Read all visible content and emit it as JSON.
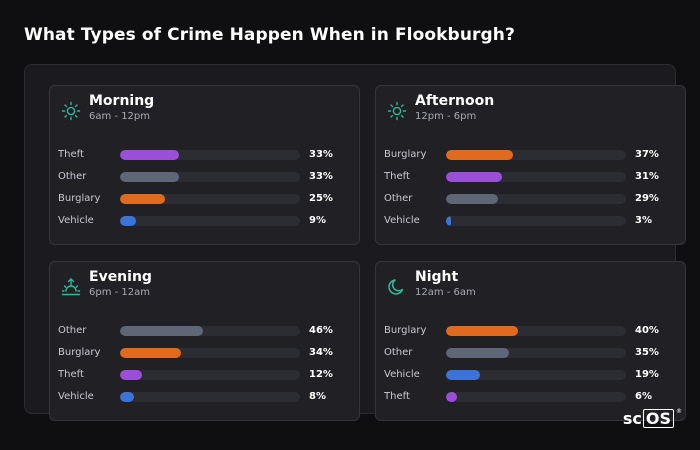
{
  "title": "What Types of Crime Happen When in Flookburgh?",
  "colors": {
    "theft": "#9b4fd9",
    "other": "#5f6675",
    "burglary": "#e06b1f",
    "vehicle": "#3b74d9",
    "icon": "#2fb89a"
  },
  "cards": [
    {
      "name": "Morning",
      "range": "6am - 12pm",
      "icon": "sun-icon",
      "rows": [
        {
          "label": "Theft",
          "pct": "33%",
          "value": 33,
          "color": "#9b4fd9"
        },
        {
          "label": "Other",
          "pct": "33%",
          "value": 33,
          "color": "#5f6675"
        },
        {
          "label": "Burglary",
          "pct": "25%",
          "value": 25,
          "color": "#e06b1f"
        },
        {
          "label": "Vehicle",
          "pct": "9%",
          "value": 9,
          "color": "#3b74d9"
        }
      ]
    },
    {
      "name": "Afternoon",
      "range": "12pm - 6pm",
      "icon": "sun-icon",
      "rows": [
        {
          "label": "Burglary",
          "pct": "37%",
          "value": 37,
          "color": "#e06b1f"
        },
        {
          "label": "Theft",
          "pct": "31%",
          "value": 31,
          "color": "#9b4fd9"
        },
        {
          "label": "Other",
          "pct": "29%",
          "value": 29,
          "color": "#5f6675"
        },
        {
          "label": "Vehicle",
          "pct": "3%",
          "value": 3,
          "color": "#3b74d9"
        }
      ]
    },
    {
      "name": "Evening",
      "range": "6pm - 12am",
      "icon": "sunset-icon",
      "rows": [
        {
          "label": "Other",
          "pct": "46%",
          "value": 46,
          "color": "#5f6675"
        },
        {
          "label": "Burglary",
          "pct": "34%",
          "value": 34,
          "color": "#e06b1f"
        },
        {
          "label": "Theft",
          "pct": "12%",
          "value": 12,
          "color": "#9b4fd9"
        },
        {
          "label": "Vehicle",
          "pct": "8%",
          "value": 8,
          "color": "#3b74d9"
        }
      ]
    },
    {
      "name": "Night",
      "range": "12am - 6am",
      "icon": "moon-icon",
      "rows": [
        {
          "label": "Burglary",
          "pct": "40%",
          "value": 40,
          "color": "#e06b1f"
        },
        {
          "label": "Other",
          "pct": "35%",
          "value": 35,
          "color": "#5f6675"
        },
        {
          "label": "Vehicle",
          "pct": "19%",
          "value": 19,
          "color": "#3b74d9"
        },
        {
          "label": "Theft",
          "pct": "6%",
          "value": 6,
          "color": "#9b4fd9"
        }
      ]
    }
  ],
  "brand": {
    "prefix": "sc",
    "boxed": "OS",
    "mark": "®"
  }
}
